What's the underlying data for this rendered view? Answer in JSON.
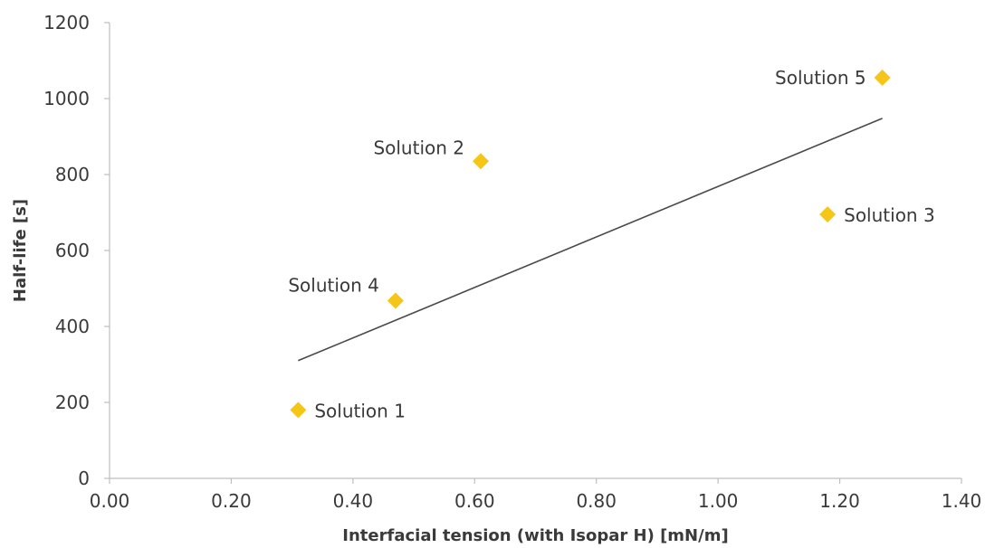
{
  "chart_data": {
    "type": "scatter",
    "title": "",
    "xlabel": "Interfacial tension (with Isopar H) [mN/m]",
    "ylabel": "Half-life [s]",
    "xlim": [
      0,
      1.4
    ],
    "ylim": [
      0,
      1200
    ],
    "x_ticks": [
      "0.00",
      "0.20",
      "0.40",
      "0.60",
      "0.80",
      "1.00",
      "1.20",
      "1.40"
    ],
    "y_ticks": [
      "0",
      "200",
      "400",
      "600",
      "800",
      "1000",
      "1200"
    ],
    "grid": false,
    "legend": "none",
    "marker_color": "#f5c518",
    "trendline_color": "#4a4a4a",
    "points": [
      {
        "label": "Solution 1",
        "x": 0.31,
        "y": 180
      },
      {
        "label": "Solution 2",
        "x": 0.61,
        "y": 835
      },
      {
        "label": "Solution 3",
        "x": 1.18,
        "y": 695
      },
      {
        "label": "Solution 4",
        "x": 0.47,
        "y": 468
      },
      {
        "label": "Solution 5",
        "x": 1.27,
        "y": 1055
      }
    ],
    "trendline": {
      "type": "linear",
      "x": [
        0.31,
        1.27
      ],
      "y": [
        310,
        948
      ]
    }
  }
}
